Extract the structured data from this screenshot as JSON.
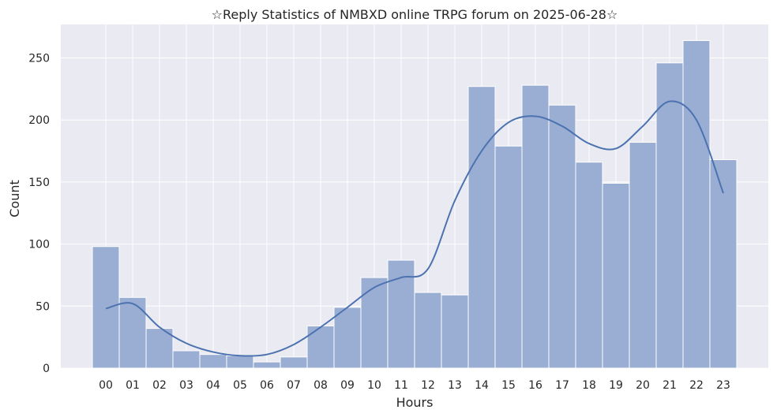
{
  "chart_data": {
    "type": "bar",
    "title": "☆Reply Statistics of NMBXD online TRPG forum on 2025-06-28☆",
    "xlabel": "Hours",
    "ylabel": "Count",
    "categories": [
      "00",
      "01",
      "02",
      "03",
      "04",
      "05",
      "06",
      "07",
      "08",
      "09",
      "10",
      "11",
      "12",
      "13",
      "14",
      "15",
      "16",
      "17",
      "18",
      "19",
      "20",
      "21",
      "22",
      "23"
    ],
    "values": [
      98,
      57,
      32,
      14,
      11,
      10,
      5,
      9,
      34,
      49,
      73,
      87,
      61,
      59,
      227,
      179,
      228,
      212,
      166,
      149,
      182,
      246,
      264,
      168
    ],
    "kde": [
      48,
      52,
      33,
      20,
      13,
      10,
      11,
      19,
      33,
      49,
      65,
      73,
      80,
      135,
      175,
      198,
      203,
      195,
      181,
      177,
      195,
      215,
      200,
      141
    ],
    "ylim": [
      0,
      277
    ],
    "yticks": [
      0,
      50,
      100,
      150,
      200,
      250
    ],
    "grid": true,
    "colors": {
      "bar_fill": "#9aaed3",
      "bar_stroke": "#ffffff",
      "kde_line": "#4c72b0",
      "plot_bg": "#eaeaf2",
      "grid": "#ffffff"
    }
  }
}
